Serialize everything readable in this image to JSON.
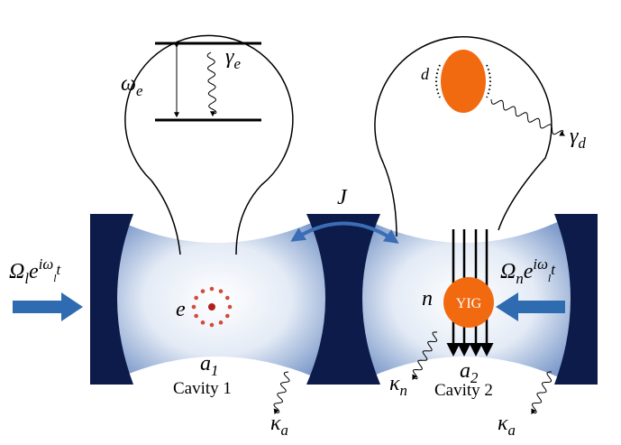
{
  "labels": {
    "omega_e": [
      {
        "t": "ω"
      },
      {
        "t": "e",
        "s": "sub"
      }
    ],
    "gamma_e": [
      {
        "t": "γ"
      },
      {
        "t": "e",
        "s": "sub"
      }
    ],
    "d": [
      {
        "t": "d"
      }
    ],
    "gamma_d": [
      {
        "t": "γ"
      },
      {
        "t": "d",
        "s": "sub"
      }
    ],
    "J": [
      {
        "t": "J"
      }
    ],
    "drive_l": [
      {
        "t": "Ω"
      },
      {
        "t": "l",
        "s": "sub"
      },
      {
        "t": "e"
      },
      {
        "t": "iω",
        "s": "sup"
      },
      {
        "t": "l",
        "s": "supsub"
      },
      {
        "t": "t",
        "s": "sup2"
      }
    ],
    "drive_n": [
      {
        "t": "Ω"
      },
      {
        "t": "n",
        "s": "sub"
      },
      {
        "t": "e"
      },
      {
        "t": "iω",
        "s": "sup"
      },
      {
        "t": "l",
        "s": "supsub"
      },
      {
        "t": "t",
        "s": "sup2"
      }
    ],
    "e": [
      {
        "t": "e"
      }
    ],
    "n": [
      {
        "t": "n"
      }
    ],
    "yig": [
      {
        "t": "YIG"
      }
    ],
    "a1": [
      {
        "t": "a"
      },
      {
        "t": "1",
        "s": "sub"
      }
    ],
    "cavity1": [
      {
        "t": "Cavity 1"
      }
    ],
    "a2": [
      {
        "t": "a"
      },
      {
        "t": "2",
        "s": "sub"
      }
    ],
    "cavity2": [
      {
        "t": "Cavity 2"
      }
    ],
    "kappa_a_left": [
      {
        "t": "κ"
      },
      {
        "t": "a",
        "s": "sub"
      }
    ],
    "kappa_n": [
      {
        "t": "κ"
      },
      {
        "t": "n",
        "s": "sub"
      }
    ],
    "kappa_a_right": [
      {
        "t": "κ"
      },
      {
        "t": "a",
        "s": "sub"
      }
    ]
  }
}
